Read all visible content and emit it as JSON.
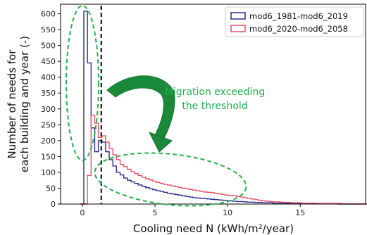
{
  "chart_data": {
    "type": "histogram",
    "xlabel": "Cooling need N (kWh/m²/year)",
    "ylabel_lines": [
      "Number of needs for",
      "each building and year (-)"
    ],
    "xlim": [
      -1.5,
      19.5
    ],
    "ylim": [
      0,
      630
    ],
    "xticks": [
      0,
      5,
      10,
      15
    ],
    "yticks": [
      0,
      50,
      100,
      150,
      200,
      250,
      300,
      350,
      400,
      450,
      500,
      550,
      600
    ],
    "bin_width": 0.25,
    "bin_start": -0.15,
    "threshold_x": 1.3,
    "legend_position": "top-right",
    "series": [
      {
        "name": "mod6_1981-mod6_2019",
        "color": "#2b2f8f",
        "values": [
          0,
          608,
          445,
          240,
          165,
          200,
          195,
          165,
          140,
          120,
          100,
          92,
          82,
          75,
          70,
          65,
          60,
          56,
          52,
          48,
          45,
          42,
          40,
          37,
          34,
          32,
          30,
          28,
          26,
          24,
          22,
          20,
          19,
          18,
          17,
          16,
          15,
          14,
          13,
          12,
          11,
          10,
          9,
          8,
          8,
          7,
          6,
          6,
          5,
          5,
          4,
          4,
          4,
          3,
          3,
          3,
          2,
          2,
          2,
          2,
          2,
          1,
          1,
          1,
          1,
          1,
          1,
          1,
          1,
          1,
          1,
          0,
          0,
          0,
          0,
          0,
          0,
          0,
          0,
          0,
          0
        ]
      },
      {
        "name": "mod6_2020-mod6_2058",
        "color": "#e8506a",
        "values": [
          0,
          0,
          90,
          280,
          255,
          210,
          215,
          195,
          175,
          155,
          140,
          125,
          118,
          110,
          102,
          96,
          90,
          85,
          80,
          76,
          72,
          68,
          65,
          62,
          60,
          57,
          55,
          52,
          50,
          48,
          46,
          44,
          42,
          40,
          38,
          37,
          36,
          34,
          32,
          30,
          28,
          27,
          26,
          24,
          22,
          20,
          18,
          16,
          14,
          12,
          10,
          9,
          8,
          7,
          7,
          6,
          5,
          5,
          4,
          4,
          4,
          3,
          3,
          3,
          3,
          2,
          2,
          2,
          2,
          2,
          2,
          2,
          1,
          1,
          1,
          1,
          1,
          1,
          1,
          0,
          0
        ]
      }
    ],
    "annotation": {
      "text_lines": [
        "Migration exceeding",
        "the threshold"
      ],
      "color": "#22b14c"
    }
  }
}
